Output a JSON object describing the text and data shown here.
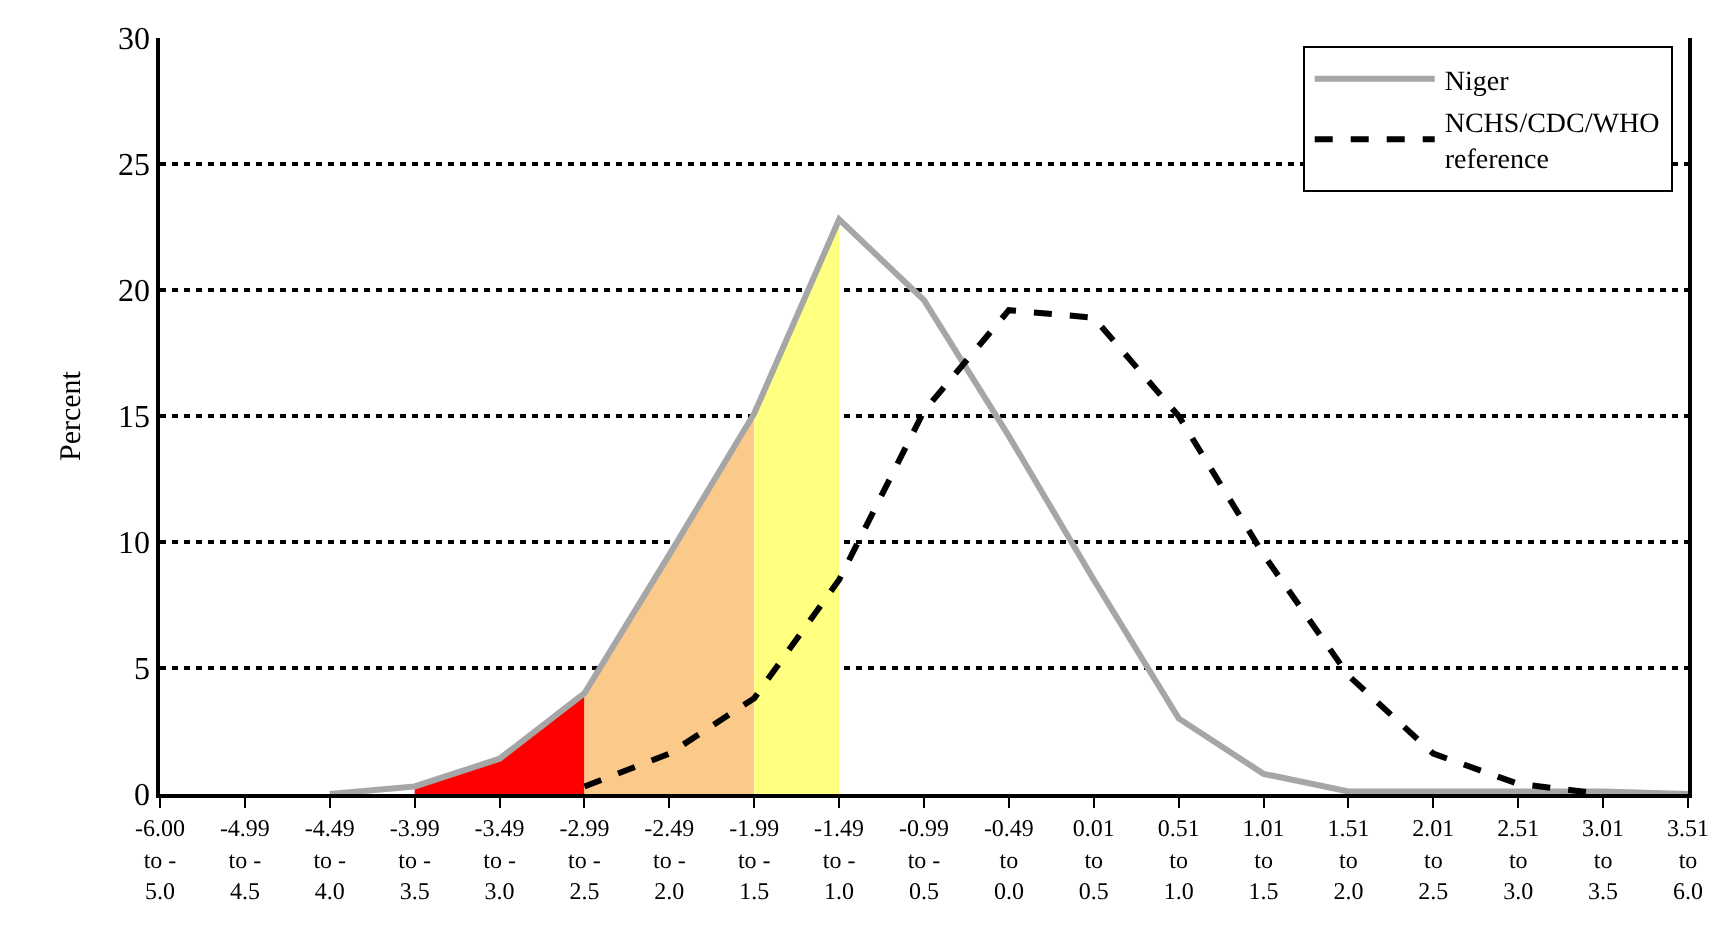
{
  "chart_data": {
    "type": "line",
    "ylabel": "Percent",
    "categories": [
      "-6.00\nto -\n5.0",
      "-4.99\nto -\n4.5",
      "-4.49\nto -\n4.0",
      "-3.99\nto -\n3.5",
      "-3.49\nto -\n3.0",
      "-2.99\nto -\n2.5",
      "-2.49\nto -\n2.0",
      "-1.99\nto -\n1.5",
      "-1.49\nto -\n1.0",
      "-0.99\nto -\n0.5",
      "-0.49\nto\n0.0",
      "0.01\nto\n0.5",
      "0.51\nto\n1.0",
      "1.01\nto\n1.5",
      "1.51\nto\n2.0",
      "2.01\nto\n2.5",
      "2.51\nto\n3.0",
      "3.01\nto\n3.5",
      "3.51\nto\n6.0"
    ],
    "series": [
      {
        "type": "area",
        "color": "#ff0000",
        "values": [
          null,
          null,
          null,
          0.3,
          1.4,
          4.0,
          null,
          null,
          null,
          null,
          null,
          null,
          null,
          null,
          null,
          null,
          null,
          null,
          null
        ]
      },
      {
        "type": "area",
        "color": "#fbc98a",
        "values": [
          null,
          null,
          null,
          null,
          null,
          4.0,
          9.5,
          15.1,
          null,
          null,
          null,
          null,
          null,
          null,
          null,
          null,
          null,
          null,
          null
        ]
      },
      {
        "type": "area",
        "color": "#ffff80",
        "values": [
          null,
          null,
          null,
          null,
          null,
          null,
          null,
          15.1,
          22.8,
          null,
          null,
          null,
          null,
          null,
          null,
          null,
          null,
          null,
          null
        ]
      },
      {
        "name": "Niger",
        "color": "#a6a6a6",
        "line_style": "solid",
        "values": [
          null,
          null,
          0,
          0.3,
          1.4,
          4.0,
          9.5,
          15.1,
          22.8,
          19.6,
          14.2,
          8.5,
          3.0,
          0.8,
          0.1,
          0.1,
          0.1,
          0.1,
          0
        ]
      },
      {
        "name": "NCHS/CDC/WHO reference",
        "color": "#000000",
        "line_style": "dashed",
        "values": [
          null,
          null,
          null,
          null,
          null,
          0.3,
          1.6,
          3.8,
          8.5,
          15.2,
          19.2,
          18.9,
          15.0,
          9.5,
          4.7,
          1.6,
          0.4,
          0,
          null
        ]
      }
    ],
    "ylim": [
      0,
      30
    ],
    "yticks": [
      0,
      5,
      10,
      15,
      20,
      25,
      30
    ],
    "grid": "y",
    "legend": "top right",
    "marker": "none"
  }
}
